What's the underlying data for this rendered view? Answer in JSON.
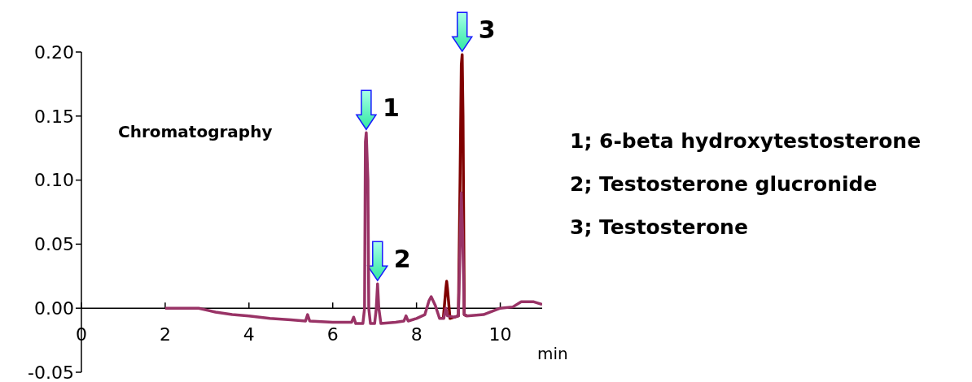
{
  "chart_data": {
    "type": "line",
    "xlabel": "min",
    "xlim": [
      0,
      11
    ],
    "xticks": [
      0,
      2,
      4,
      6,
      8,
      10
    ],
    "ylim": [
      -0.05,
      0.2
    ],
    "yticks": [
      {
        "value": -0.05,
        "label": "-0.05"
      },
      {
        "value": 0,
        "label": "0.00"
      },
      {
        "value": 0.05,
        "label": "0.05"
      },
      {
        "value": 0.1,
        "label": "0.10"
      },
      {
        "value": 0.15,
        "label": "0.15"
      },
      {
        "value": 0.2,
        "label": "0.20"
      }
    ],
    "marker": "none",
    "line_style": "solid",
    "series": [
      {
        "color": "#800000",
        "x": [
          8.64,
          8.7,
          8.72,
          8.74,
          8.8,
          9.0,
          9.04,
          9.07,
          9.09,
          9.11,
          9.14,
          9.2
        ],
        "values": [
          -0.008,
          0.015,
          0.021,
          0.015,
          -0.008,
          -0.006,
          0.1,
          0.19,
          0.198,
          0.15,
          -0.005,
          -0.006
        ]
      },
      {
        "color": "#993366",
        "x": [
          2.0,
          2.4,
          2.8,
          3.2,
          3.6,
          4.0,
          4.5,
          5.0,
          5.35,
          5.4,
          5.45,
          6.0,
          6.45,
          6.5,
          6.55,
          6.72,
          6.76,
          6.78,
          6.8,
          6.84,
          6.86,
          6.9,
          7.0,
          7.04,
          7.07,
          7.1,
          7.15,
          7.5,
          7.7,
          7.75,
          7.8,
          8.0,
          8.2,
          8.3,
          8.35,
          8.45,
          8.55,
          8.65,
          8.7,
          8.74,
          8.9,
          9.0,
          9.04,
          9.07,
          9.1,
          9.14,
          9.2,
          9.6,
          10.0,
          10.3,
          10.5,
          10.8,
          11.0
        ],
        "values": [
          0.0,
          0.0,
          0.0,
          -0.003,
          -0.005,
          -0.006,
          -0.008,
          -0.009,
          -0.01,
          -0.005,
          -0.01,
          -0.011,
          -0.011,
          -0.007,
          -0.012,
          -0.012,
          0.0,
          0.13,
          0.137,
          0.1,
          0.0,
          -0.012,
          -0.012,
          0.0,
          0.019,
          0.0,
          -0.012,
          -0.011,
          -0.01,
          -0.006,
          -0.01,
          -0.008,
          -0.005,
          0.006,
          0.009,
          0.002,
          -0.008,
          -0.008,
          0.0,
          -0.006,
          -0.007,
          -0.006,
          0.05,
          0.09,
          0.06,
          -0.005,
          -0.006,
          -0.005,
          0.0,
          0.001,
          0.005,
          0.005,
          0.003
        ]
      }
    ],
    "annotations": [
      {
        "text": "1",
        "x": 6.8,
        "y": 0.137
      },
      {
        "text": "2",
        "x": 7.07,
        "y": 0.019
      },
      {
        "text": "3",
        "x": 9.09,
        "y": 0.198
      },
      "Chromatography",
      "1; 6-beta hydroxytestosterone",
      "2; Testosterone glucronide",
      "3; Testosterone"
    ]
  }
}
